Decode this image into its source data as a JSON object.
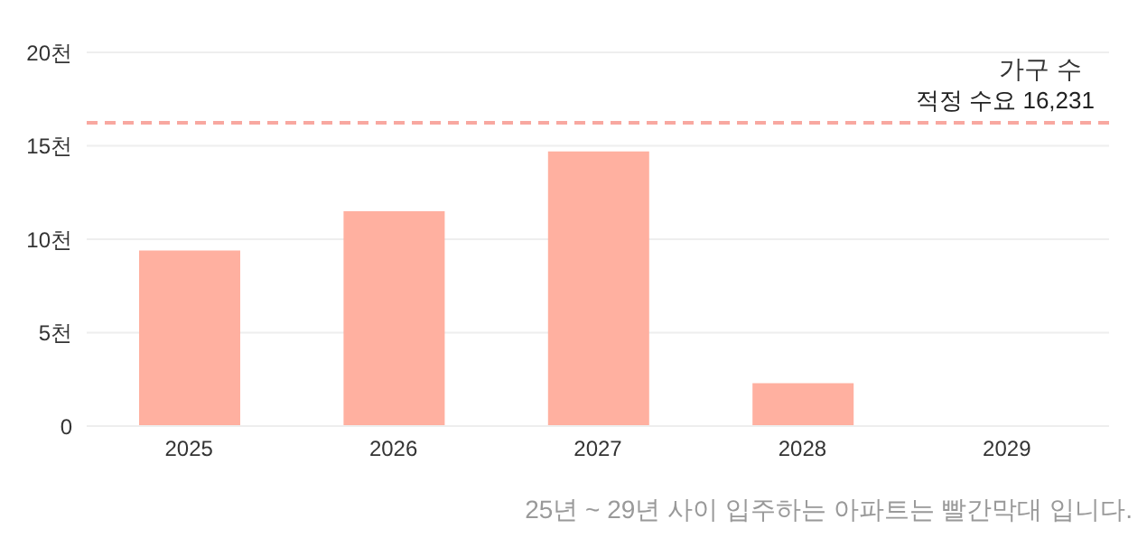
{
  "chart_data": {
    "type": "bar",
    "ylabel": "가구 수",
    "categories": [
      "2025",
      "2026",
      "2027",
      "2028",
      "2029"
    ],
    "values": [
      9.4,
      11.5,
      14.7,
      2.3,
      0
    ],
    "color": "#ffb0a0",
    "ylim": [
      0,
      20
    ],
    "yticks": [
      0,
      {
        "value": 5,
        "label": "5천"
      },
      {
        "value": 10,
        "label": "10천"
      },
      {
        "value": 15,
        "label": "15천"
      },
      {
        "value": 20,
        "label": "20천"
      }
    ],
    "grid": "y",
    "ref_lines": [
      {
        "axis": "y",
        "value": 16.231,
        "label": "적정 수요 16,231",
        "color": "#f8a8a0",
        "line_style": "dashed"
      }
    ],
    "annotations": [
      "25년 ~ 29년 사이 입주하는 아파트는 빨간막대 입니다."
    ]
  }
}
